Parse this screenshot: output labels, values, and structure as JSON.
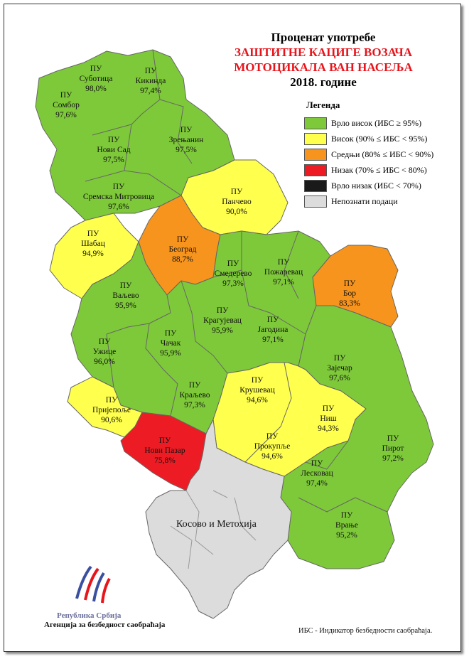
{
  "title": {
    "line1": "Проценат употребе",
    "line2": "ЗАШТИТНЕ КАЦИГЕ ВОЗАЧА",
    "line3": "МОТОЦИКАЛА ВАН НАСЕЉА",
    "line4": "2018. године"
  },
  "legend": {
    "heading": "Легенда",
    "items": [
      {
        "label": "Врло висок (ИБС ≥ 95%)",
        "color": "#7ec93a"
      },
      {
        "label": "Висок (90% ≤ ИБС < 95%)",
        "color": "#ffff4d"
      },
      {
        "label": "Средњи (80% ≤ ИБС < 90%)",
        "color": "#f7941d"
      },
      {
        "label": "Низак (70% ≤ ИБС < 80%)",
        "color": "#ed1c24"
      },
      {
        "label": "Врло низак (ИБС < 70%)",
        "color": "#1a1a1a"
      },
      {
        "label": "Непознати подаци",
        "color": "#dcdcdc"
      }
    ]
  },
  "regions": [
    {
      "name": "ПУ\nСуботица",
      "value": "98,0%",
      "level": "very-high"
    },
    {
      "name": "ПУ\nКикинда",
      "value": "97,4%",
      "level": "very-high"
    },
    {
      "name": "ПУ\nСомбор",
      "value": "97,6%",
      "level": "very-high"
    },
    {
      "name": "ПУ\nНови Сад",
      "value": "97,5%",
      "level": "very-high"
    },
    {
      "name": "ПУ\nЗрењанин",
      "value": "97,5%",
      "level": "very-high"
    },
    {
      "name": "ПУ\nСремска Митровица",
      "value": "97,6%",
      "level": "very-high"
    },
    {
      "name": "ПУ\nПанчево",
      "value": "90,0%",
      "level": "high"
    },
    {
      "name": "ПУ\nШабац",
      "value": "94,9%",
      "level": "high"
    },
    {
      "name": "ПУ\nБеоград",
      "value": "88,7%",
      "level": "medium"
    },
    {
      "name": "ПУ\nСмедерево",
      "value": "97,3%",
      "level": "very-high"
    },
    {
      "name": "ПУ\nПожаревац",
      "value": "97,1%",
      "level": "very-high"
    },
    {
      "name": "ПУ\nБор",
      "value": "83,3%",
      "level": "medium"
    },
    {
      "name": "ПУ\nВаљево",
      "value": "95,9%",
      "level": "very-high"
    },
    {
      "name": "ПУ\nКрагујевац",
      "value": "95,9%",
      "level": "very-high"
    },
    {
      "name": "ПУ\nЈагодина",
      "value": "97,1%",
      "level": "very-high"
    },
    {
      "name": "ПУ\nУжице",
      "value": "96,0%",
      "level": "very-high"
    },
    {
      "name": "ПУ\nЧачак",
      "value": "95,9%",
      "level": "very-high"
    },
    {
      "name": "ПУ\nЗајечар",
      "value": "97,6%",
      "level": "very-high"
    },
    {
      "name": "ПУ\nКраљево",
      "value": "97,3%",
      "level": "very-high"
    },
    {
      "name": "ПУ\nКрушевац",
      "value": "94,6%",
      "level": "high"
    },
    {
      "name": "ПУ\nПријепоље",
      "value": "90,6%",
      "level": "high"
    },
    {
      "name": "ПУ\nНиш",
      "value": "94,3%",
      "level": "high"
    },
    {
      "name": "ПУ\nПирот",
      "value": "97,2%",
      "level": "very-high"
    },
    {
      "name": "ПУ\nНови Пазар",
      "value": "75,8%",
      "level": "low"
    },
    {
      "name": "ПУ\nПрокупље",
      "value": "94,6%",
      "level": "high"
    },
    {
      "name": "ПУ\nЛесковац",
      "value": "97,4%",
      "level": "very-high"
    },
    {
      "name": "ПУ\nВрање",
      "value": "95,2%",
      "level": "very-high"
    }
  ],
  "kosovo_label": "Косово и Метохија",
  "org": {
    "line1": "Република Србија",
    "line2": "Агенција за безбедност саобраћаја"
  },
  "footnote": "ИБС - Индикатор безбедности саобраћаја."
}
